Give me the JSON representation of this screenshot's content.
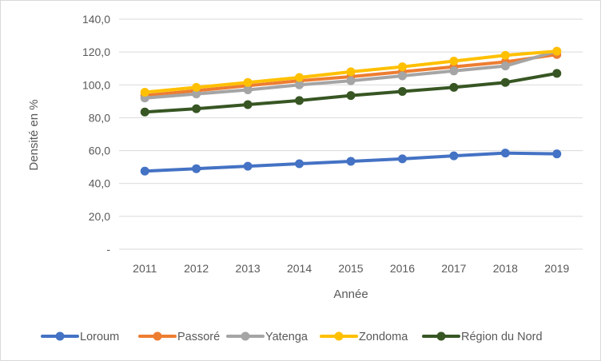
{
  "chart_data": {
    "type": "line",
    "xlabel": "Année",
    "ylabel": "Densité en %",
    "x": [
      "2011",
      "2012",
      "2013",
      "2014",
      "2015",
      "2016",
      "2017",
      "2018",
      "2019"
    ],
    "ylim": [
      0,
      140
    ],
    "y_ticks": [
      "-",
      "20,0",
      "40,0",
      "60,0",
      "80,0",
      "100,0",
      "120,0",
      "140,0"
    ],
    "grid": "horizontal",
    "legend_position": "bottom",
    "series": [
      {
        "name": "Loroum",
        "color": "#4472c4",
        "values": [
          47.5,
          49.0,
          50.5,
          52.0,
          53.5,
          55.0,
          56.8,
          58.5,
          58.0
        ]
      },
      {
        "name": "Passoré",
        "color": "#ed7d31",
        "values": [
          93.5,
          96.5,
          99.5,
          102.5,
          105.0,
          108.0,
          111.0,
          114.0,
          118.5
        ]
      },
      {
        "name": "Yatenga",
        "color": "#a5a5a5",
        "values": [
          92.0,
          94.5,
          97.0,
          100.0,
          102.5,
          105.5,
          108.5,
          111.5,
          120.5
        ]
      },
      {
        "name": "Zondoma",
        "color": "#ffc000",
        "values": [
          95.5,
          98.5,
          101.5,
          104.5,
          108.0,
          111.0,
          114.5,
          118.0,
          120.5
        ]
      },
      {
        "name": "Région du Nord",
        "color": "#375623",
        "values": [
          83.5,
          85.5,
          88.0,
          90.5,
          93.5,
          96.0,
          98.5,
          101.5,
          107.0
        ]
      }
    ]
  }
}
